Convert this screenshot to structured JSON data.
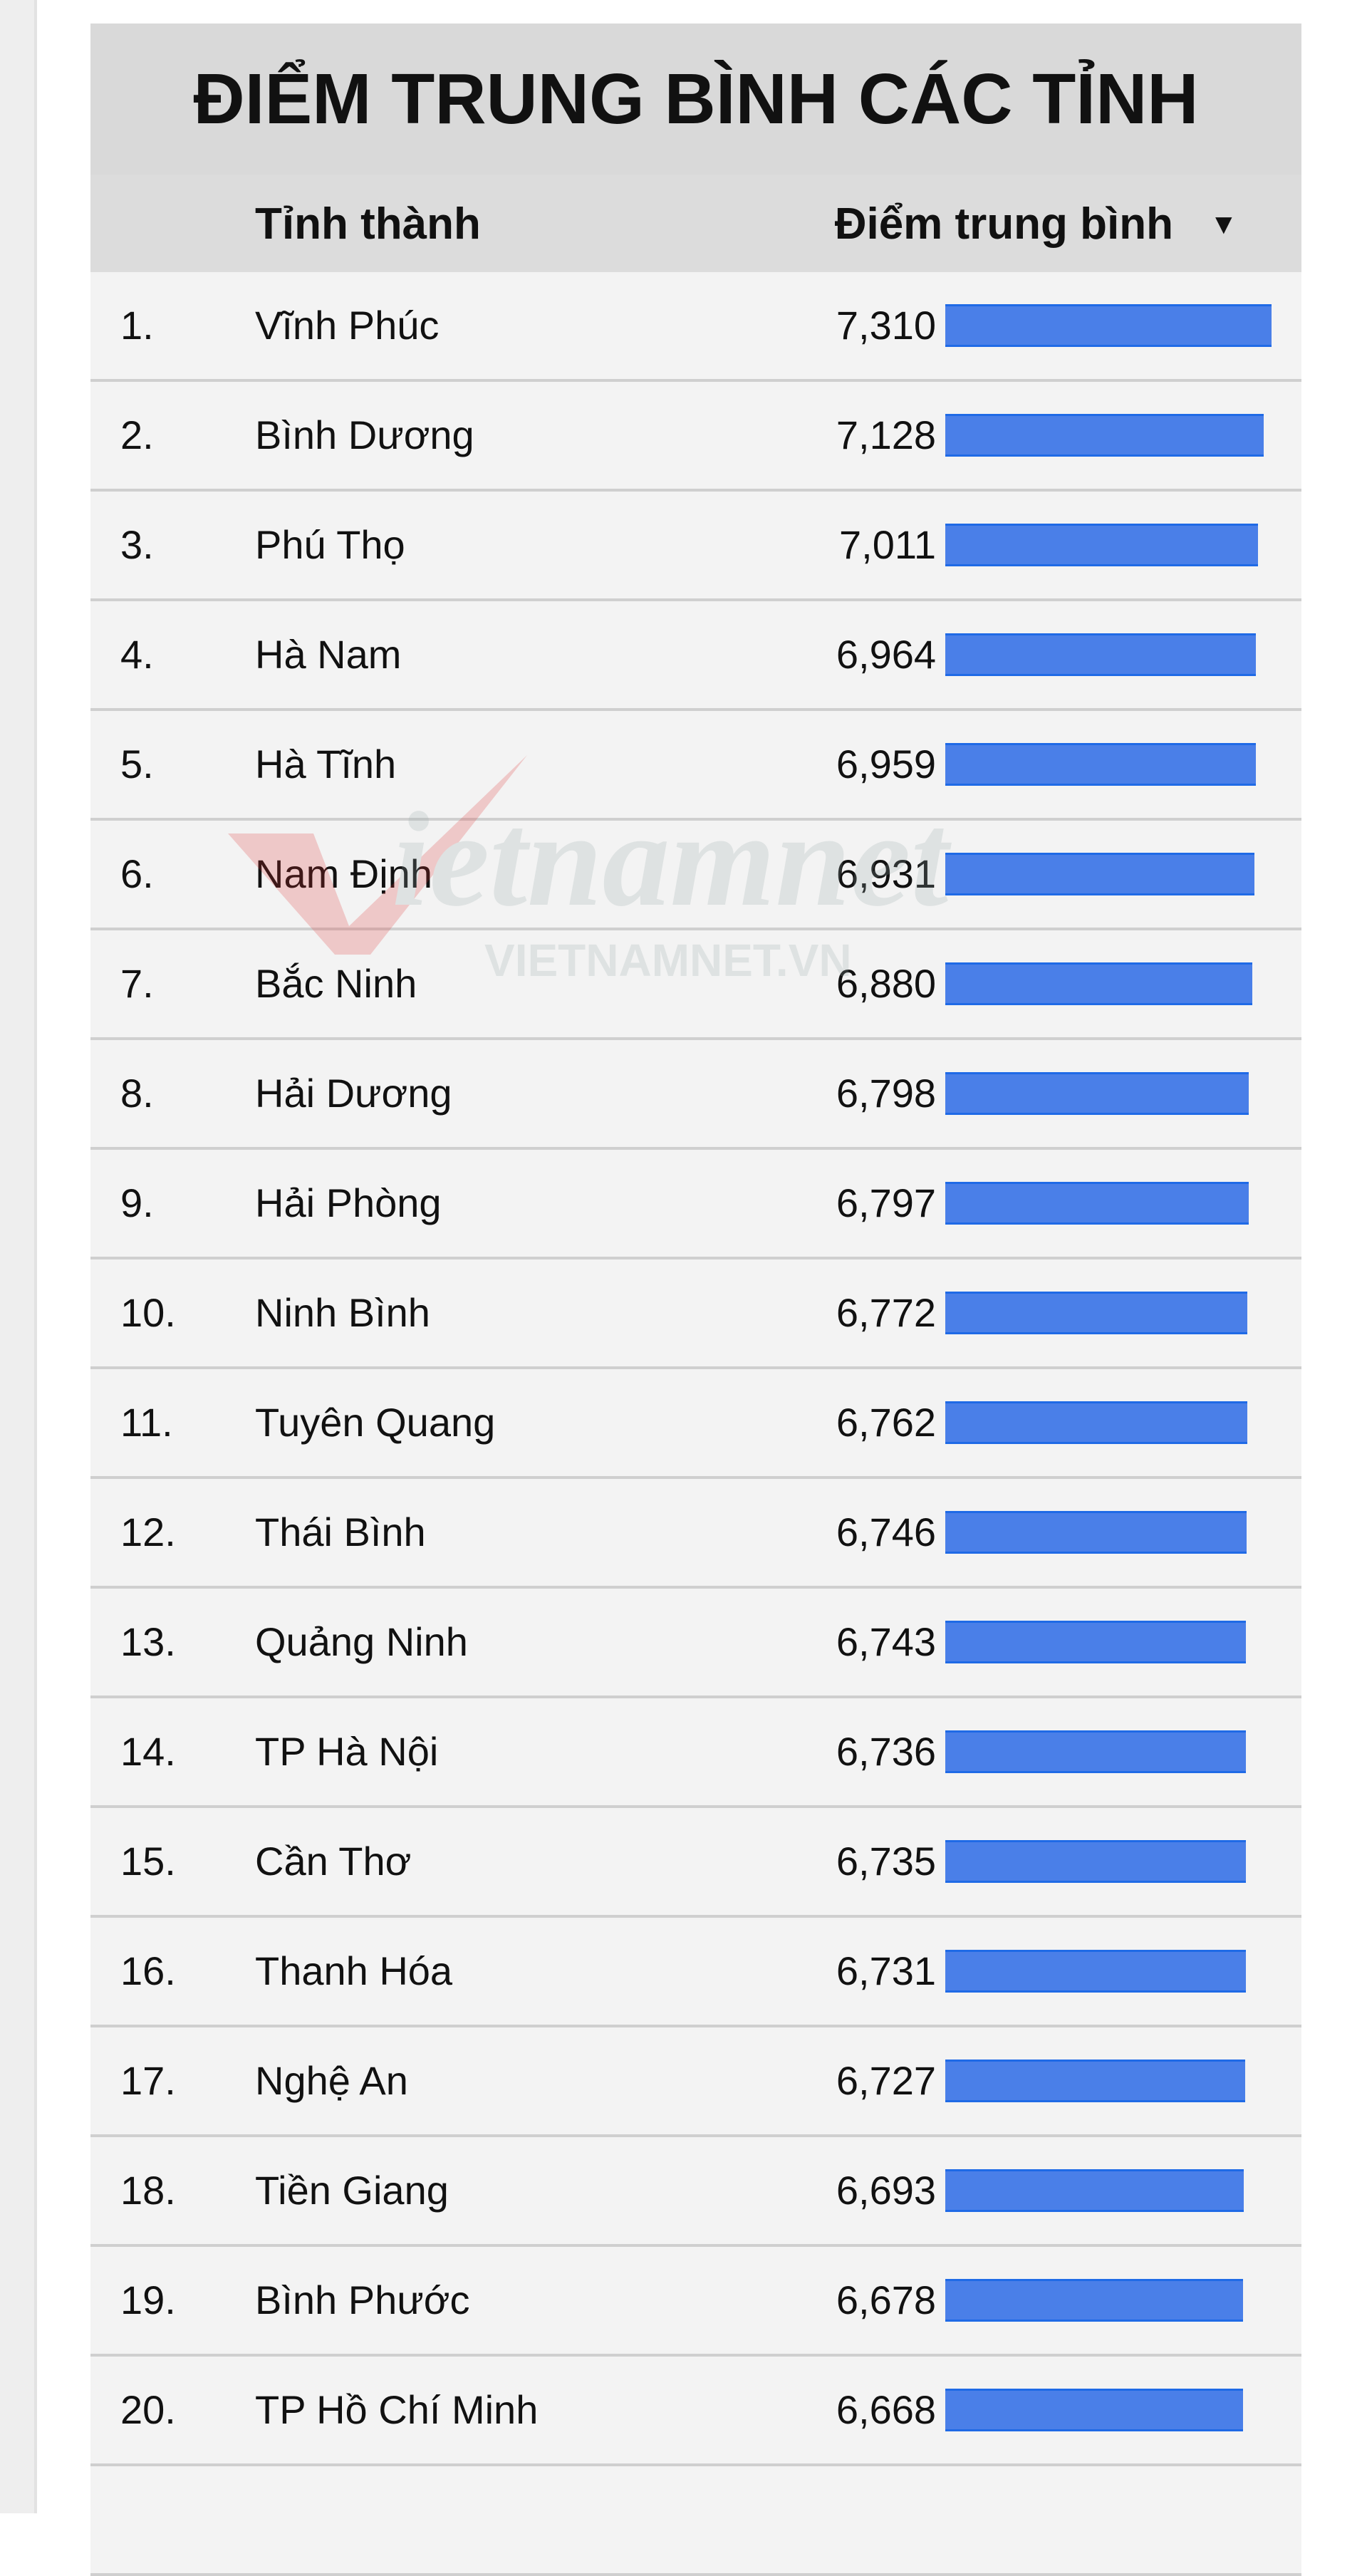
{
  "chart_data": {
    "type": "table",
    "title": "ĐIỂM TRUNG BÌNH CÁC TỈNH",
    "columns": [
      "Tỉnh thành",
      "Điểm trung bình"
    ],
    "sort": "descending",
    "bar_color": "#4a7fe8",
    "rows": [
      {
        "rank": "1.",
        "name": "Vĩnh Phúc",
        "value": 7.31,
        "label": "7,310"
      },
      {
        "rank": "2.",
        "name": "Bình Dương",
        "value": 7.128,
        "label": "7,128"
      },
      {
        "rank": "3.",
        "name": "Phú Thọ",
        "value": 7.011,
        "label": "7,011"
      },
      {
        "rank": "4.",
        "name": "Hà Nam",
        "value": 6.964,
        "label": "6,964"
      },
      {
        "rank": "5.",
        "name": "Hà Tĩnh",
        "value": 6.959,
        "label": "6,959"
      },
      {
        "rank": "6.",
        "name": "Nam Định",
        "value": 6.931,
        "label": "6,931"
      },
      {
        "rank": "7.",
        "name": "Bắc Ninh",
        "value": 6.88,
        "label": "6,880"
      },
      {
        "rank": "8.",
        "name": "Hải Dương",
        "value": 6.798,
        "label": "6,798"
      },
      {
        "rank": "9.",
        "name": "Hải Phòng",
        "value": 6.797,
        "label": "6,797"
      },
      {
        "rank": "10.",
        "name": "Ninh Bình",
        "value": 6.772,
        "label": "6,772"
      },
      {
        "rank": "11.",
        "name": "Tuyên Quang",
        "value": 6.762,
        "label": "6,762"
      },
      {
        "rank": "12.",
        "name": "Thái Bình",
        "value": 6.746,
        "label": "6,746"
      },
      {
        "rank": "13.",
        "name": "Quảng Ninh",
        "value": 6.743,
        "label": "6,743"
      },
      {
        "rank": "14.",
        "name": "TP Hà Nội",
        "value": 6.736,
        "label": "6,736"
      },
      {
        "rank": "15.",
        "name": "Cần Thơ",
        "value": 6.735,
        "label": "6,735"
      },
      {
        "rank": "16.",
        "name": "Thanh Hóa",
        "value": 6.731,
        "label": "6,731"
      },
      {
        "rank": "17.",
        "name": "Nghệ An",
        "value": 6.727,
        "label": "6,727"
      },
      {
        "rank": "18.",
        "name": "Tiền Giang",
        "value": 6.693,
        "label": "6,693"
      },
      {
        "rank": "19.",
        "name": "Bình Phước",
        "value": 6.678,
        "label": "6,678"
      },
      {
        "rank": "20.",
        "name": "TP Hồ Chí Minh",
        "value": 6.668,
        "label": "6,668"
      }
    ]
  },
  "watermark": {
    "logo": "vietnamnet",
    "sub": "VIETNAMNET.VN"
  }
}
